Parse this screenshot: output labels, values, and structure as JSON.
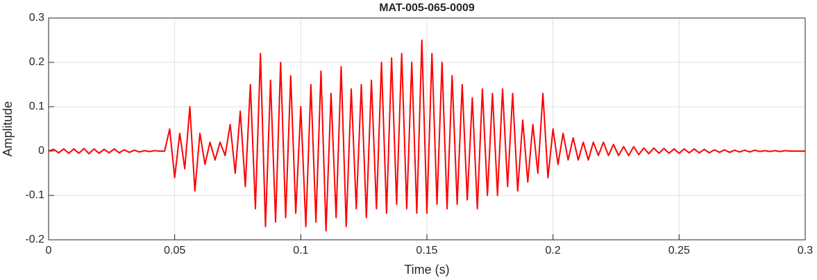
{
  "chart_data": {
    "type": "line",
    "title": "MAT-005-065-0009",
    "xlabel": "Time (s)",
    "ylabel": "Amplitude",
    "color": "#ff0000",
    "grid": true,
    "xlim": [
      0,
      0.3
    ],
    "xticks": [
      0,
      0.05,
      0.1,
      0.15,
      0.2,
      0.25,
      0.3
    ],
    "ylim": [
      -0.2,
      0.3
    ],
    "yticks": [
      -0.2,
      -0.1,
      0,
      0.1,
      0.2,
      0.3
    ],
    "x": [
      0,
      0.002,
      0.004,
      0.006,
      0.008,
      0.01,
      0.012,
      0.014,
      0.016,
      0.018,
      0.02,
      0.022,
      0.024,
      0.026,
      0.028,
      0.03,
      0.032,
      0.034,
      0.036,
      0.038,
      0.04,
      0.042,
      0.044,
      0.046,
      0.048,
      0.05,
      0.052,
      0.054,
      0.056,
      0.058,
      0.06,
      0.062,
      0.064,
      0.066,
      0.068,
      0.07,
      0.072,
      0.074,
      0.076,
      0.078,
      0.08,
      0.082,
      0.084,
      0.086,
      0.088,
      0.09,
      0.092,
      0.094,
      0.096,
      0.098,
      0.1,
      0.102,
      0.104,
      0.106,
      0.108,
      0.11,
      0.112,
      0.114,
      0.116,
      0.118,
      0.12,
      0.122,
      0.124,
      0.126,
      0.128,
      0.13,
      0.132,
      0.134,
      0.136,
      0.138,
      0.14,
      0.142,
      0.144,
      0.146,
      0.148,
      0.15,
      0.152,
      0.154,
      0.156,
      0.158,
      0.16,
      0.162,
      0.164,
      0.166,
      0.168,
      0.17,
      0.172,
      0.174,
      0.176,
      0.178,
      0.18,
      0.182,
      0.184,
      0.186,
      0.188,
      0.19,
      0.192,
      0.194,
      0.196,
      0.198,
      0.2,
      0.202,
      0.204,
      0.206,
      0.208,
      0.21,
      0.212,
      0.214,
      0.216,
      0.218,
      0.22,
      0.222,
      0.224,
      0.226,
      0.228,
      0.23,
      0.232,
      0.234,
      0.236,
      0.238,
      0.24,
      0.242,
      0.244,
      0.246,
      0.248,
      0.25,
      0.252,
      0.254,
      0.256,
      0.258,
      0.26,
      0.262,
      0.264,
      0.266,
      0.268,
      0.27,
      0.272,
      0.274,
      0.276,
      0.278,
      0.28,
      0.282,
      0.284,
      0.286,
      0.288,
      0.29,
      0.292,
      0.294,
      0.296,
      0.298,
      0.3
    ],
    "values": [
      0,
      0.004,
      -0.004,
      0.005,
      -0.005,
      0.005,
      -0.005,
      0.006,
      -0.006,
      0.005,
      -0.005,
      0.004,
      -0.004,
      0.005,
      -0.004,
      0.003,
      -0.003,
      0.002,
      -0.002,
      0.001,
      -0.001,
      0.001,
      0,
      0,
      0.05,
      -0.06,
      0.04,
      -0.04,
      0.1,
      -0.09,
      0.04,
      -0.03,
      0.02,
      -0.02,
      0.02,
      -0.01,
      0.06,
      -0.05,
      0.09,
      -0.08,
      0.15,
      -0.13,
      0.22,
      -0.17,
      0.16,
      -0.16,
      0.2,
      -0.15,
      0.17,
      -0.14,
      0.1,
      -0.17,
      0.15,
      -0.16,
      0.18,
      -0.18,
      0.13,
      -0.15,
      0.19,
      -0.17,
      0.14,
      -0.13,
      0.15,
      -0.15,
      0.16,
      -0.13,
      0.2,
      -0.14,
      0.21,
      -0.12,
      0.22,
      -0.13,
      0.2,
      -0.14,
      0.25,
      -0.14,
      0.22,
      -0.12,
      0.2,
      -0.13,
      0.17,
      -0.12,
      0.15,
      -0.11,
      0.12,
      -0.13,
      0.14,
      -0.1,
      0.13,
      -0.1,
      0.14,
      -0.08,
      0.13,
      -0.09,
      0.07,
      -0.07,
      0.06,
      -0.05,
      0.13,
      -0.06,
      0.05,
      -0.03,
      0.04,
      -0.02,
      0.03,
      -0.02,
      0.02,
      -0.02,
      0.02,
      -0.01,
      0.02,
      -0.01,
      0.015,
      -0.01,
      0.01,
      -0.01,
      0.01,
      -0.008,
      0.007,
      -0.006,
      0.007,
      -0.005,
      0.006,
      -0.005,
      0.005,
      -0.005,
      0.005,
      -0.004,
      0.005,
      -0.004,
      0.004,
      -0.004,
      0.003,
      -0.003,
      0.003,
      -0.003,
      0.002,
      -0.002,
      0.002,
      -0.002,
      0.002,
      -0.001,
      0.001,
      -0.001,
      0.001,
      -0.001,
      0.001,
      0,
      0,
      0,
      0
    ]
  }
}
